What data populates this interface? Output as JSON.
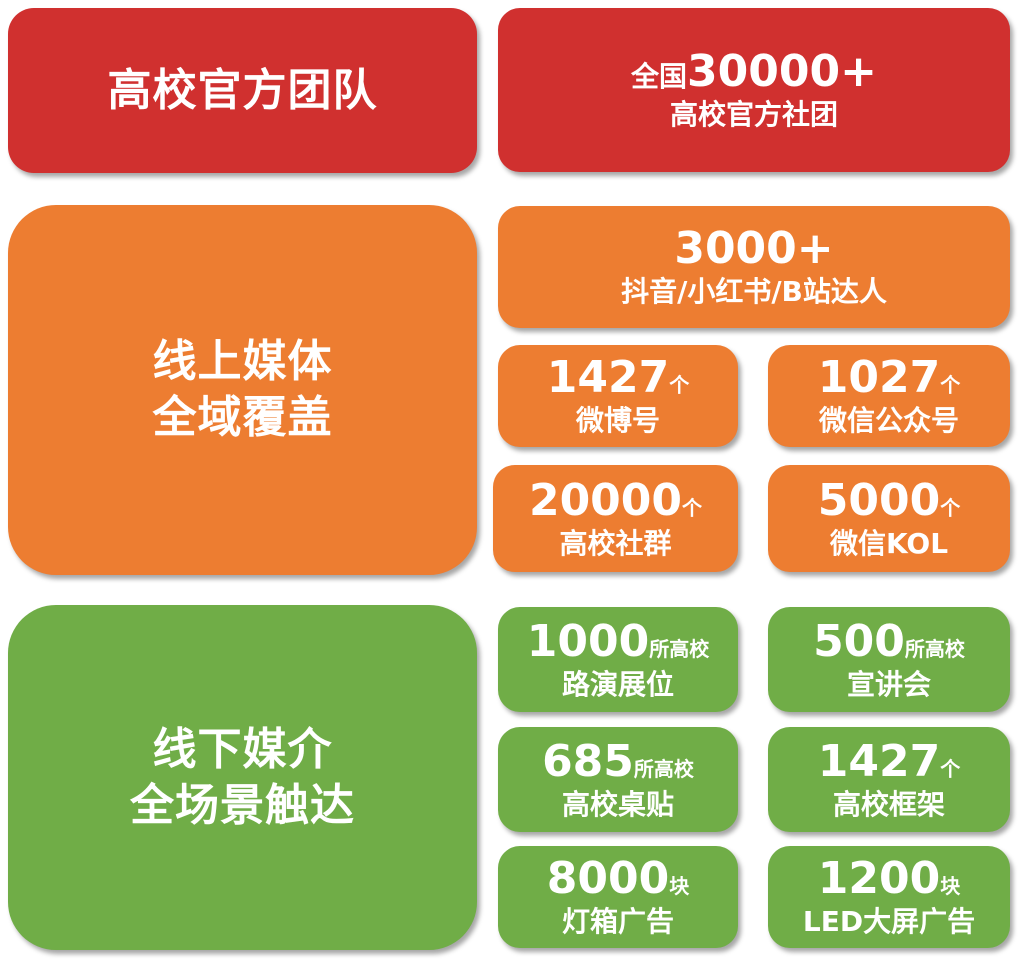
{
  "colors": {
    "red": "#d0302f",
    "orange": "#ed7d31",
    "green": "#70ad47"
  },
  "team": {
    "title": "高校官方团队",
    "stat_prefix": "全国",
    "stat_number": "30000+",
    "stat_label": "高校官方社团"
  },
  "online": {
    "title_line1": "线上媒体",
    "title_line2": "全域覆盖",
    "headline": {
      "number": "3000+",
      "label": "抖音/小红书/B站达人"
    },
    "items": [
      {
        "number": "1427",
        "unit": "个",
        "label": "微博号"
      },
      {
        "number": "1027",
        "unit": "个",
        "label": "微信公众号"
      },
      {
        "number": "20000",
        "unit": "个",
        "label": "高校社群"
      },
      {
        "number": "5000",
        "unit": "个",
        "label": "微信KOL"
      }
    ]
  },
  "offline": {
    "title_line1": "线下媒介",
    "title_line2": "全场景触达",
    "items": [
      {
        "number": "1000",
        "unit": "所高校",
        "label": "路演展位"
      },
      {
        "number": "500",
        "unit": "所高校",
        "label": "宣讲会"
      },
      {
        "number": "685",
        "unit": "所高校",
        "label": "高校桌贴"
      },
      {
        "number": "1427",
        "unit": "个",
        "label": "高校框架"
      },
      {
        "number": "8000",
        "unit": "块",
        "label": "灯箱广告"
      },
      {
        "number": "1200",
        "unit": "块",
        "label": "LED大屏广告"
      }
    ]
  }
}
